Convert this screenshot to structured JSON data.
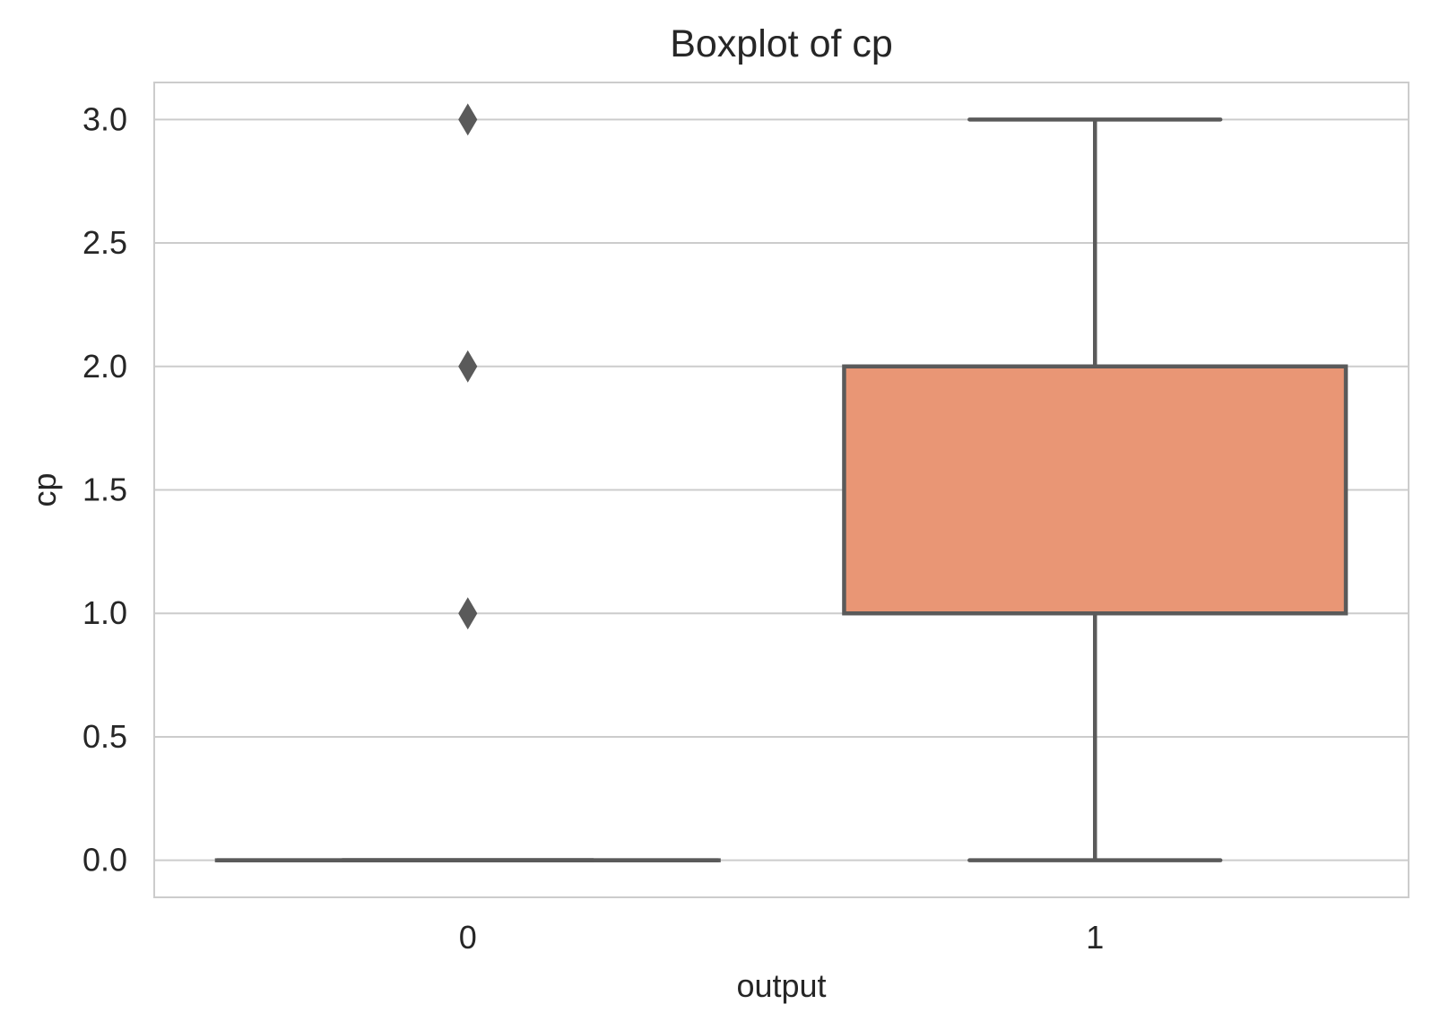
{
  "chart_data": {
    "type": "box",
    "title": "Boxplot of cp",
    "xlabel": "output",
    "ylabel": "cp",
    "categories": [
      "0",
      "1"
    ],
    "ylim": [
      -0.15,
      3.15
    ],
    "yticks": [
      "0.0",
      "0.5",
      "1.0",
      "1.5",
      "2.0",
      "2.5",
      "3.0"
    ],
    "grid": true,
    "boxes": [
      {
        "category": "0",
        "whisker_low": 0,
        "q1": 0,
        "median": 0,
        "q3": 0,
        "whisker_high": 0,
        "outliers": [
          1,
          2,
          3
        ],
        "color": "#66c2a5"
      },
      {
        "category": "1",
        "whisker_low": 0,
        "q1": 1,
        "median": 2,
        "q3": 2,
        "whisker_high": 3,
        "outliers": [],
        "color": "#e99675"
      }
    ],
    "line_color": "#5a5a5a",
    "grid_color": "#cccccc"
  }
}
